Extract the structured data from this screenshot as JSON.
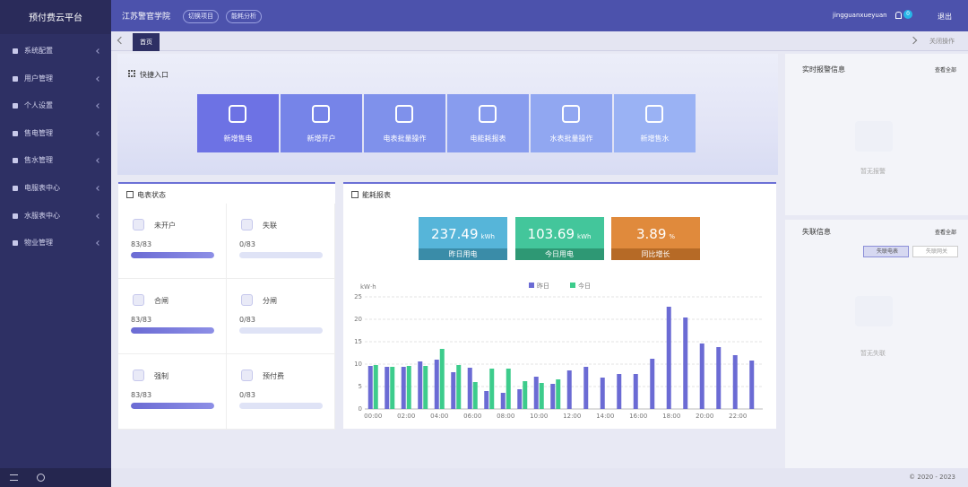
{
  "sidebar": {
    "title": "预付费云平台",
    "menu": [
      "系统配置",
      "用户管理",
      "个人设置",
      "售电管理",
      "售水管理",
      "电服表中心",
      "水服表中心",
      "物业管理"
    ]
  },
  "topbar": {
    "project": "江苏警官学院",
    "buttons": [
      "切换项目",
      "能耗分析"
    ],
    "user": "jingguanxueyuan",
    "badge": 0,
    "logout": "退出"
  },
  "tabs": {
    "items": [
      "首页"
    ],
    "close": "关闭操作"
  },
  "quick": {
    "title": "快捷入口",
    "tiles": [
      "新增售电",
      "新增开户",
      "电表批量操作",
      "电能耗报表",
      "水表批量操作",
      "新增售水"
    ]
  },
  "meter_status": {
    "title": "电表状态",
    "items": [
      {
        "label": "未开户",
        "value": "83/83"
      },
      {
        "label": "失联",
        "value": "0/83"
      },
      {
        "label": "合闸",
        "value": "83/83"
      },
      {
        "label": "分闸",
        "value": "0/83"
      },
      {
        "label": "强制",
        "value": "83/83"
      },
      {
        "label": "预付费",
        "value": "0/83"
      }
    ]
  },
  "energy": {
    "title": "能耗报表",
    "kpis": [
      {
        "value": 237.49,
        "unit": "kWh",
        "label": "昨日用电",
        "color": "#56b5d9",
        "dark": "#3a8ca8"
      },
      {
        "value": 103.69,
        "unit": "kWh",
        "label": "今日用电",
        "color": "#43c69b",
        "dark": "#2e9874"
      },
      {
        "value": 3.89,
        "unit": "%",
        "label": "同比增长",
        "color": "#e08a3c",
        "dark": "#b66a26"
      }
    ]
  },
  "chart_data": {
    "type": "bar",
    "y_label": "kW·h",
    "categories": [
      "00:00",
      null,
      "02:00",
      null,
      "04:00",
      null,
      "06:00",
      null,
      "08:00",
      null,
      "10:00",
      null,
      "12:00",
      null,
      "14:00",
      null,
      "16:00",
      null,
      "18:00",
      null,
      "20:00",
      null,
      "22:00",
      null
    ],
    "series": [
      {
        "name": "昨日",
        "color": "#6b6bd4",
        "values": [
          9.6,
          9.4,
          9.4,
          10.6,
          11,
          8.2,
          9.2,
          4,
          3.6,
          4.4,
          7.2,
          5.6,
          8.6,
          9.4,
          7,
          7.8,
          7.8,
          11.2,
          22.8,
          20.4,
          14.6,
          13.8,
          12,
          10.8
        ]
      },
      {
        "name": "今日",
        "color": "#3dcc8c",
        "values": [
          9.8,
          9.4,
          9.6,
          9.6,
          13.4,
          9.8,
          6,
          9,
          9,
          6.2,
          5.8,
          6.6,
          null,
          null,
          null,
          null,
          null,
          null,
          null,
          null,
          null,
          null,
          null,
          null
        ]
      }
    ],
    "ylim": [
      0,
      25
    ],
    "yticks": [
      0,
      5,
      10,
      15,
      20,
      25
    ],
    "grid": true
  },
  "alarm": {
    "title": "实时报警信息",
    "more": "查看全部",
    "empty": "暂无报警"
  },
  "offline": {
    "title": "失联信息",
    "more": "查看全部",
    "buttons": [
      "失联电表",
      "失联网关"
    ],
    "empty": "暂无失联"
  },
  "footer": "© 2020 - 2023"
}
